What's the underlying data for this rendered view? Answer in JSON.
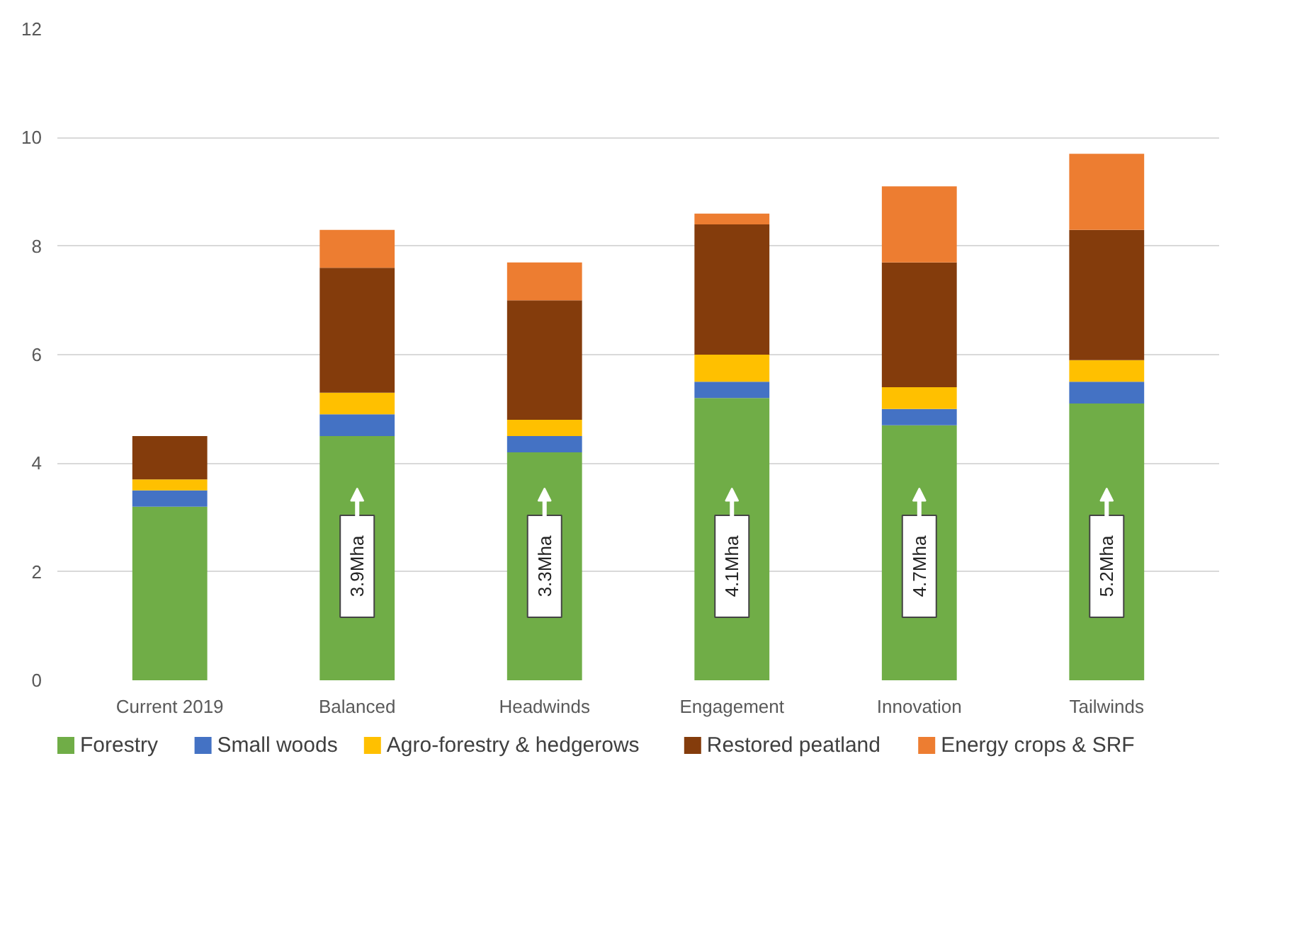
{
  "chart_data": {
    "type": "bar",
    "stacked": true,
    "categories": [
      "Current 2019",
      "Balanced",
      "Headwinds",
      "Engagement",
      "Innovation",
      "Tailwinds"
    ],
    "series": [
      {
        "name": "Forestry",
        "color": "#70ad47",
        "values": [
          3.2,
          4.5,
          4.2,
          5.2,
          4.7,
          5.1
        ]
      },
      {
        "name": "Small woods",
        "color": "#4472c4",
        "values": [
          0.3,
          0.4,
          0.3,
          0.3,
          0.3,
          0.4
        ]
      },
      {
        "name": "Agro-forestry & hedgerows",
        "color": "#ffc000",
        "values": [
          0.2,
          0.4,
          0.3,
          0.5,
          0.4,
          0.4
        ]
      },
      {
        "name": "Restored peatland",
        "color": "#843c0c",
        "values": [
          0.8,
          2.3,
          2.2,
          2.4,
          2.3,
          2.4
        ]
      },
      {
        "name": "Energy crops & SRF",
        "color": "#ed7d31",
        "values": [
          0,
          0.7,
          0.7,
          0.2,
          1.4,
          1.4
        ]
      }
    ],
    "ylim": [
      0,
      12
    ],
    "yticks": [
      0,
      2,
      4,
      6,
      8,
      10,
      12
    ],
    "grid": "y",
    "legend": "bottom",
    "annotations": [
      "3.9Mha",
      "3.3Mha",
      "4.1Mha",
      "4.7Mha",
      "5.2Mha"
    ]
  }
}
